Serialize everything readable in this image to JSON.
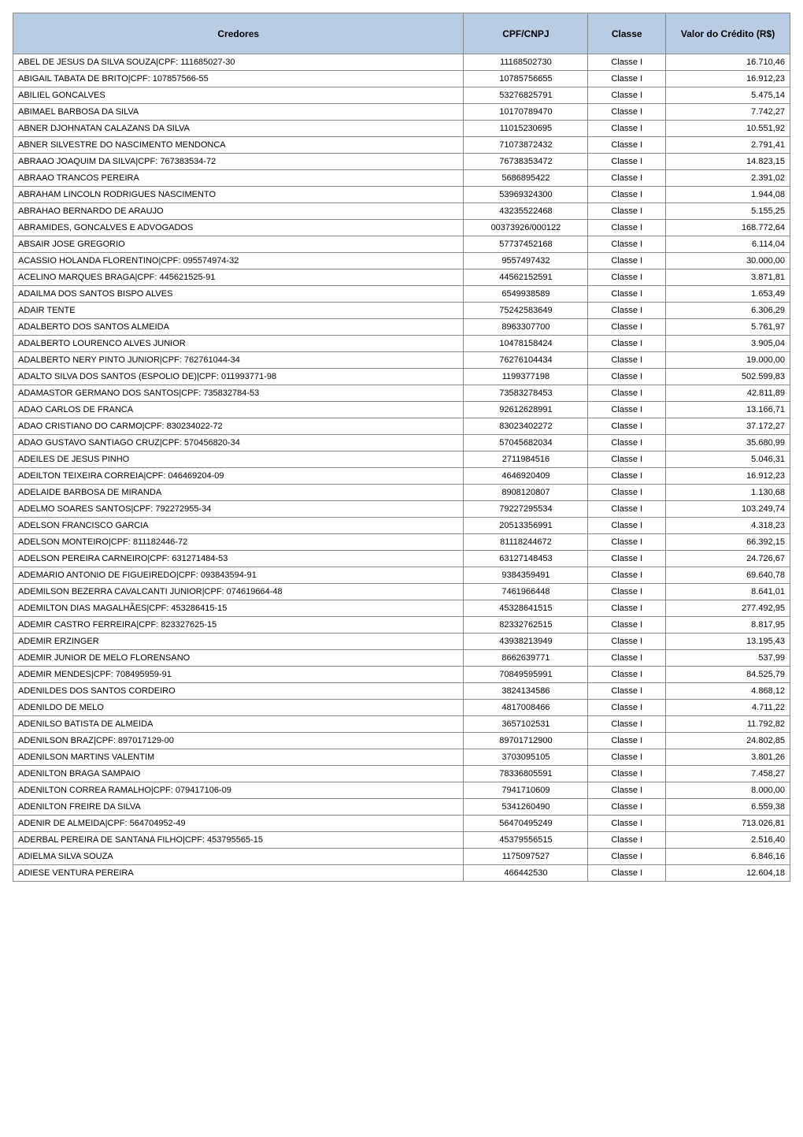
{
  "table": {
    "header_bg": "#b8cce4",
    "header_color": "#000000",
    "border_color": "#888888",
    "font_family": "Arial",
    "cell_fontsize": 11,
    "header_fontsize": 12,
    "columns": [
      {
        "label": "Credores",
        "align": "left",
        "width_pct": 58
      },
      {
        "label": "CPF/CNPJ",
        "align": "center",
        "width_pct": 16
      },
      {
        "label": "Classe",
        "align": "center",
        "width_pct": 10
      },
      {
        "label": "Valor do Crédito (R$)",
        "align": "right",
        "width_pct": 16
      }
    ],
    "rows": [
      [
        "ABEL DE JESUS DA SILVA SOUZA|CPF: 111685027-30",
        "11168502730",
        "Classe I",
        "16.710,46"
      ],
      [
        "ABIGAIL TABATA DE BRITO|CPF: 107857566-55",
        "10785756655",
        "Classe I",
        "16.912,23"
      ],
      [
        "ABILIEL GONCALVES",
        "53276825791",
        "Classe I",
        "5.475,14"
      ],
      [
        "ABIMAEL BARBOSA DA SILVA",
        "10170789470",
        "Classe I",
        "7.742,27"
      ],
      [
        "ABNER DJOHNATAN CALAZANS DA SILVA",
        "11015230695",
        "Classe I",
        "10.551,92"
      ],
      [
        "ABNER SILVESTRE DO NASCIMENTO MENDONCA",
        "71073872432",
        "Classe I",
        "2.791,41"
      ],
      [
        "ABRAAO JOAQUIM DA SILVA|CPF: 767383534-72",
        "76738353472",
        "Classe I",
        "14.823,15"
      ],
      [
        "ABRAAO TRANCOS PEREIRA",
        "5686895422",
        "Classe I",
        "2.391,02"
      ],
      [
        "ABRAHAM LINCOLN RODRIGUES NASCIMENTO",
        "53969324300",
        "Classe I",
        "1.944,08"
      ],
      [
        "ABRAHAO BERNARDO DE ARAUJO",
        "43235522468",
        "Classe I",
        "5.155,25"
      ],
      [
        "ABRAMIDES, GONCALVES E ADVOGADOS",
        "00373926/000122",
        "Classe I",
        "168.772,64"
      ],
      [
        "ABSAIR JOSE GREGORIO",
        "57737452168",
        "Classe I",
        "6.114,04"
      ],
      [
        "ACASSIO HOLANDA FLORENTINO|CPF: 095574974-32",
        "9557497432",
        "Classe I",
        "30.000,00"
      ],
      [
        "ACELINO MARQUES BRAGA|CPF: 445621525-91",
        "44562152591",
        "Classe I",
        "3.871,81"
      ],
      [
        "ADAILMA DOS SANTOS BISPO ALVES",
        "6549938589",
        "Classe I",
        "1.653,49"
      ],
      [
        "ADAIR TENTE",
        "75242583649",
        "Classe I",
        "6.306,29"
      ],
      [
        "ADALBERTO DOS SANTOS ALMEIDA",
        "8963307700",
        "Classe I",
        "5.761,97"
      ],
      [
        "ADALBERTO LOURENCO ALVES JUNIOR",
        "10478158424",
        "Classe I",
        "3.905,04"
      ],
      [
        "ADALBERTO NERY PINTO JUNIOR|CPF: 762761044-34",
        "76276104434",
        "Classe I",
        "19.000,00"
      ],
      [
        "ADALTO SILVA DOS SANTOS (ESPOLIO DE)|CPF: 011993771-98",
        "1199377198",
        "Classe I",
        "502.599,83"
      ],
      [
        "ADAMASTOR GERMANO DOS SANTOS|CPF: 735832784-53",
        "73583278453",
        "Classe I",
        "42.811,89"
      ],
      [
        "ADAO CARLOS DE FRANCA",
        "92612628991",
        "Classe I",
        "13.166,71"
      ],
      [
        "ADAO CRISTIANO DO CARMO|CPF: 830234022-72",
        "83023402272",
        "Classe I",
        "37.172,27"
      ],
      [
        "ADAO GUSTAVO SANTIAGO CRUZ|CPF: 570456820-34",
        "57045682034",
        "Classe I",
        "35.680,99"
      ],
      [
        "ADEILES DE JESUS PINHO",
        "2711984516",
        "Classe I",
        "5.046,31"
      ],
      [
        "ADEILTON TEIXEIRA CORREIA|CPF: 046469204-09",
        "4646920409",
        "Classe I",
        "16.912,23"
      ],
      [
        "ADELAIDE BARBOSA DE MIRANDA",
        "8908120807",
        "Classe I",
        "1.130,68"
      ],
      [
        "ADELMO SOARES SANTOS|CPF: 792272955-34",
        "79227295534",
        "Classe I",
        "103.249,74"
      ],
      [
        "ADELSON FRANCISCO GARCIA",
        "20513356991",
        "Classe I",
        "4.318,23"
      ],
      [
        "ADELSON MONTEIRO|CPF: 811182446-72",
        "81118244672",
        "Classe I",
        "66.392,15"
      ],
      [
        "ADELSON PEREIRA CARNEIRO|CPF: 631271484-53",
        "63127148453",
        "Classe I",
        "24.726,67"
      ],
      [
        "ADEMARIO ANTONIO DE FIGUEIREDO|CPF: 093843594-91",
        "9384359491",
        "Classe I",
        "69.640,78"
      ],
      [
        "ADEMILSON BEZERRA CAVALCANTI JUNIOR|CPF: 074619664-48",
        "7461966448",
        "Classe I",
        "8.641,01"
      ],
      [
        "ADEMILTON DIAS MAGALHÃES|CPF: 453286415-15",
        "45328641515",
        "Classe I",
        "277.492,95"
      ],
      [
        "ADEMIR CASTRO FERREIRA|CPF: 823327625-15",
        "82332762515",
        "Classe I",
        "8.817,95"
      ],
      [
        "ADEMIR ERZINGER",
        "43938213949",
        "Classe I",
        "13.195,43"
      ],
      [
        "ADEMIR JUNIOR DE MELO FLORENSANO",
        "8662639771",
        "Classe I",
        "537,99"
      ],
      [
        "ADEMIR MENDES|CPF: 708495959-91",
        "70849595991",
        "Classe I",
        "84.525,79"
      ],
      [
        "ADENILDES DOS SANTOS CORDEIRO",
        "3824134586",
        "Classe I",
        "4.868,12"
      ],
      [
        "ADENILDO DE MELO",
        "4817008466",
        "Classe I",
        "4.711,22"
      ],
      [
        "ADENILSO BATISTA DE ALMEIDA",
        "3657102531",
        "Classe I",
        "11.792,82"
      ],
      [
        "ADENILSON BRAZ|CPF: 897017129-00",
        "89701712900",
        "Classe I",
        "24.802,85"
      ],
      [
        "ADENILSON MARTINS VALENTIM",
        "3703095105",
        "Classe I",
        "3.801,26"
      ],
      [
        "ADENILTON BRAGA SAMPAIO",
        "78336805591",
        "Classe I",
        "7.458,27"
      ],
      [
        "ADENILTON CORREA RAMALHO|CPF: 079417106-09",
        "7941710609",
        "Classe I",
        "8.000,00"
      ],
      [
        "ADENILTON FREIRE DA SILVA",
        "5341260490",
        "Classe I",
        "6.559,38"
      ],
      [
        "ADENIR DE ALMEIDA|CPF: 564704952-49",
        "56470495249",
        "Classe I",
        "713.026,81"
      ],
      [
        "ADERBAL PEREIRA DE SANTANA FILHO|CPF: 453795565-15",
        "45379556515",
        "Classe I",
        "2.516,40"
      ],
      [
        "ADIELMA SILVA SOUZA",
        "1175097527",
        "Classe I",
        "6.846,16"
      ],
      [
        "ADIESE VENTURA PEREIRA",
        "466442530",
        "Classe I",
        "12.604,18"
      ]
    ]
  }
}
